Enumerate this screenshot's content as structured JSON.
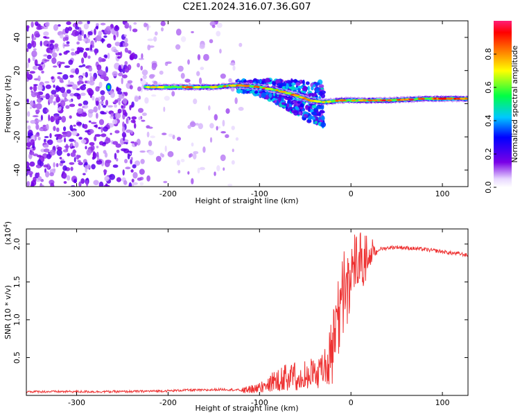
{
  "figure_title": "C2E1.2024.316.07.36.G07",
  "chart_data": [
    {
      "type": "heatmap",
      "title": "C2E1.2024.316.07.36.G07",
      "xlabel": "Height of straight line (km)",
      "ylabel": "Frequency (Hz)",
      "xlim": [
        -355,
        128
      ],
      "ylim": [
        -50,
        50
      ],
      "xticks": [
        -300,
        -200,
        -100,
        0,
        100
      ],
      "yticks": [
        -40,
        -20,
        0,
        20,
        40
      ],
      "colorbar": {
        "label": "Normalized spectral amplitude",
        "range": [
          0,
          1
        ],
        "ticks": [
          "0.0",
          "0.2",
          "0.4",
          "0.6",
          "0.8"
        ],
        "tick_values": [
          0,
          0.2,
          0.4,
          0.6,
          0.8
        ],
        "colormap": "rainbow (purple → blue → cyan → green → yellow → red → pink)"
      },
      "dominant_frequency_track": {
        "x": [
          -225,
          -200,
          -175,
          -150,
          -130,
          -120,
          -100,
          -80,
          -60,
          -45,
          -30,
          -10,
          0,
          20,
          40,
          60,
          80,
          100,
          128
        ],
        "y": [
          10,
          10,
          10,
          10,
          11,
          11,
          10,
          8,
          5,
          2,
          1,
          2,
          2,
          2,
          2,
          2.5,
          3,
          3,
          3
        ]
      },
      "grid": false
    },
    {
      "type": "line",
      "xlabel": "Height of straight line (km)",
      "ylabel": "SNR (10 * v/v)",
      "y_multiplier_label": "(x10",
      "y_multiplier_exp": "4",
      "y_multiplier_close": ")",
      "xlim": [
        -355,
        128
      ],
      "ylim": [
        0,
        2.2
      ],
      "xticks": [
        -300,
        -200,
        -100,
        0,
        100
      ],
      "yticks": [
        0.5,
        1.0,
        1.5,
        2.0
      ],
      "ytick_labels": [
        "0.5",
        "1.0",
        "1.5",
        "2.0"
      ],
      "series": [
        {
          "color": "#ee3333",
          "x": [
            -355,
            -300,
            -250,
            -200,
            -180,
            -160,
            -140,
            -120,
            -100,
            -90,
            -80,
            -70,
            -60,
            -50,
            -40,
            -30,
            -25,
            -20,
            -15,
            -10,
            -5,
            0,
            5,
            10,
            15,
            20,
            25,
            30,
            40,
            50,
            60,
            80,
            100,
            110,
            120,
            128
          ],
          "y": [
            0.05,
            0.05,
            0.05,
            0.06,
            0.07,
            0.07,
            0.08,
            0.07,
            0.12,
            0.18,
            0.28,
            0.3,
            0.32,
            0.35,
            0.38,
            0.4,
            0.55,
            0.8,
            1.0,
            1.25,
            1.45,
            1.55,
            1.65,
            1.75,
            1.8,
            1.85,
            1.9,
            1.93,
            1.95,
            1.96,
            1.95,
            1.93,
            1.9,
            1.88,
            1.87,
            1.85
          ]
        }
      ],
      "grid": false
    }
  ]
}
